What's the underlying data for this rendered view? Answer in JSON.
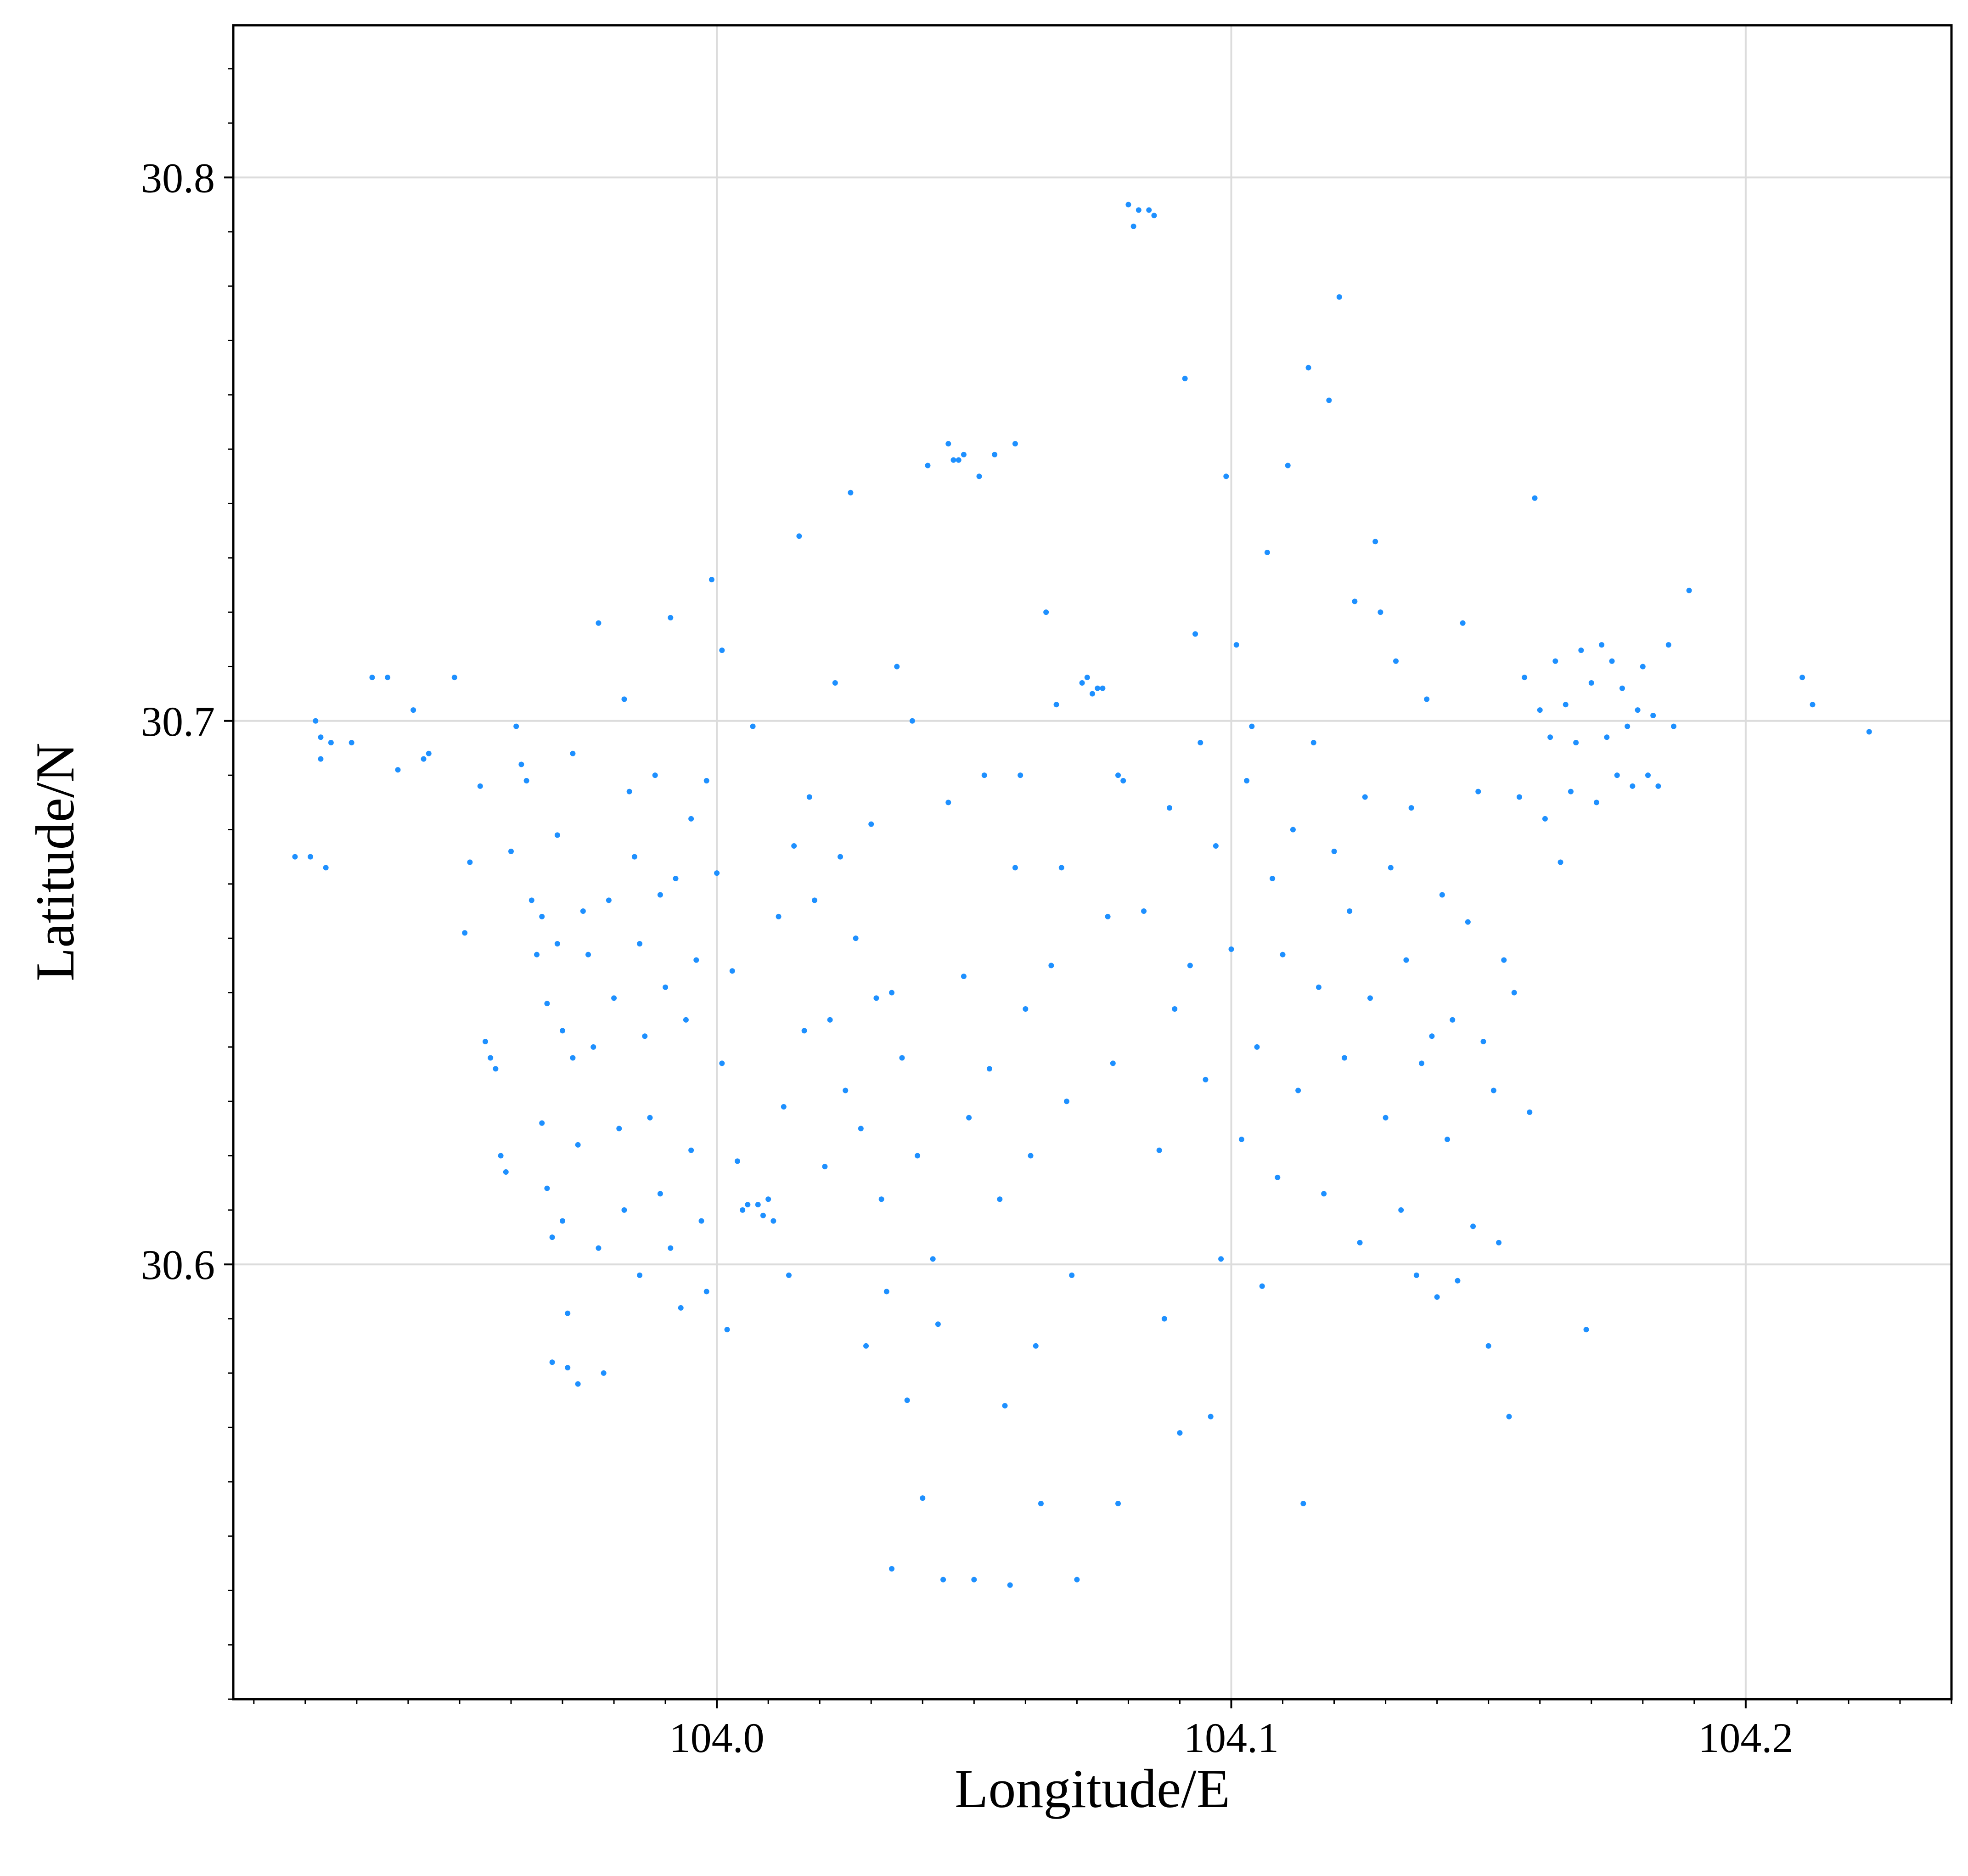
{
  "chart_data": {
    "type": "scatter",
    "title": "",
    "xlabel": "Longitude/E",
    "ylabel": "Latitude/N",
    "xlim": [
      103.906,
      104.24
    ],
    "ylim": [
      30.52,
      30.828
    ],
    "x_ticks": [
      104.0,
      104.1,
      104.2
    ],
    "x_tick_labels": [
      "104.0",
      "104.1",
      "104.2"
    ],
    "y_ticks": [
      30.6,
      30.7,
      30.8
    ],
    "y_tick_labels": [
      "30.6",
      "30.7",
      "30.8"
    ],
    "x_minor_step": 0.01,
    "y_minor_step": 0.01,
    "grid": true,
    "legend": "none",
    "marker_color": "#1e90ff",
    "series": [
      {
        "points": [
          [
            103.918,
            30.675
          ],
          [
            103.921,
            30.675
          ],
          [
            103.922,
            30.7
          ],
          [
            103.923,
            30.693
          ],
          [
            103.923,
            30.697
          ],
          [
            103.924,
            30.673
          ],
          [
            103.925,
            30.696
          ],
          [
            103.929,
            30.696
          ],
          [
            103.933,
            30.708
          ],
          [
            103.936,
            30.708
          ],
          [
            103.938,
            30.691
          ],
          [
            103.941,
            30.702
          ],
          [
            103.943,
            30.693
          ],
          [
            103.944,
            30.694
          ],
          [
            103.949,
            30.708
          ],
          [
            103.951,
            30.661
          ],
          [
            103.952,
            30.674
          ],
          [
            103.954,
            30.688
          ],
          [
            103.955,
            30.641
          ],
          [
            103.956,
            30.638
          ],
          [
            103.957,
            30.636
          ],
          [
            103.958,
            30.62
          ],
          [
            103.959,
            30.617
          ],
          [
            103.96,
            30.676
          ],
          [
            103.961,
            30.699
          ],
          [
            103.962,
            30.692
          ],
          [
            103.963,
            30.689
          ],
          [
            103.964,
            30.667
          ],
          [
            103.965,
            30.657
          ],
          [
            103.966,
            30.664
          ],
          [
            103.966,
            30.626
          ],
          [
            103.967,
            30.648
          ],
          [
            103.967,
            30.614
          ],
          [
            103.968,
            30.605
          ],
          [
            103.968,
            30.582
          ],
          [
            103.969,
            30.679
          ],
          [
            103.969,
            30.659
          ],
          [
            103.97,
            30.643
          ],
          [
            103.97,
            30.608
          ],
          [
            103.971,
            30.591
          ],
          [
            103.971,
            30.581
          ],
          [
            103.972,
            30.694
          ],
          [
            103.972,
            30.638
          ],
          [
            103.973,
            30.622
          ],
          [
            103.973,
            30.578
          ],
          [
            103.974,
            30.665
          ],
          [
            103.975,
            30.657
          ],
          [
            103.976,
            30.64
          ],
          [
            103.977,
            30.718
          ],
          [
            103.977,
            30.603
          ],
          [
            103.978,
            30.58
          ],
          [
            103.979,
            30.667
          ],
          [
            103.98,
            30.649
          ],
          [
            103.981,
            30.625
          ],
          [
            103.982,
            30.704
          ],
          [
            103.982,
            30.61
          ],
          [
            103.983,
            30.687
          ],
          [
            103.984,
            30.675
          ],
          [
            103.985,
            30.659
          ],
          [
            103.985,
            30.598
          ],
          [
            103.986,
            30.642
          ],
          [
            103.987,
            30.627
          ],
          [
            103.988,
            30.69
          ],
          [
            103.989,
            30.668
          ],
          [
            103.989,
            30.613
          ],
          [
            103.99,
            30.651
          ],
          [
            103.991,
            30.719
          ],
          [
            103.991,
            30.603
          ],
          [
            103.992,
            30.671
          ],
          [
            103.993,
            30.592
          ],
          [
            103.994,
            30.645
          ],
          [
            103.995,
            30.682
          ],
          [
            103.995,
            30.621
          ],
          [
            103.996,
            30.656
          ],
          [
            103.997,
            30.608
          ],
          [
            103.998,
            30.689
          ],
          [
            103.998,
            30.595
          ],
          [
            103.999,
            30.726
          ],
          [
            104.0,
            30.672
          ],
          [
            104.001,
            30.637
          ],
          [
            104.001,
            30.713
          ],
          [
            104.002,
            30.588
          ],
          [
            104.003,
            30.654
          ],
          [
            104.004,
            30.619
          ],
          [
            104.005,
            30.61
          ],
          [
            104.006,
            30.611
          ],
          [
            104.007,
            30.699
          ],
          [
            104.008,
            30.611
          ],
          [
            104.009,
            30.609
          ],
          [
            104.01,
            30.612
          ],
          [
            104.011,
            30.608
          ],
          [
            104.012,
            30.664
          ],
          [
            104.013,
            30.629
          ],
          [
            104.014,
            30.598
          ],
          [
            104.015,
            30.677
          ],
          [
            104.016,
            30.734
          ],
          [
            104.017,
            30.643
          ],
          [
            104.018,
            30.686
          ],
          [
            104.019,
            30.667
          ],
          [
            104.021,
            30.618
          ],
          [
            104.022,
            30.645
          ],
          [
            104.023,
            30.707
          ],
          [
            104.024,
            30.675
          ],
          [
            104.025,
            30.632
          ],
          [
            104.026,
            30.742
          ],
          [
            104.027,
            30.66
          ],
          [
            104.028,
            30.625
          ],
          [
            104.029,
            30.585
          ],
          [
            104.03,
            30.681
          ],
          [
            104.031,
            30.649
          ],
          [
            104.032,
            30.612
          ],
          [
            104.033,
            30.595
          ],
          [
            104.034,
            30.65
          ],
          [
            104.034,
            30.544
          ],
          [
            104.035,
            30.71
          ],
          [
            104.036,
            30.638
          ],
          [
            104.037,
            30.575
          ],
          [
            104.038,
            30.7
          ],
          [
            104.039,
            30.62
          ],
          [
            104.04,
            30.557
          ],
          [
            104.041,
            30.747
          ],
          [
            104.042,
            30.601
          ],
          [
            104.043,
            30.589
          ],
          [
            104.044,
            30.542
          ],
          [
            104.045,
            30.751
          ],
          [
            104.045,
            30.685
          ],
          [
            104.046,
            30.748
          ],
          [
            104.047,
            30.748
          ],
          [
            104.048,
            30.749
          ],
          [
            104.048,
            30.653
          ],
          [
            104.049,
            30.627
          ],
          [
            104.05,
            30.542
          ],
          [
            104.051,
            30.745
          ],
          [
            104.052,
            30.69
          ],
          [
            104.053,
            30.636
          ],
          [
            104.054,
            30.749
          ],
          [
            104.055,
            30.612
          ],
          [
            104.056,
            30.574
          ],
          [
            104.057,
            30.541
          ],
          [
            104.058,
            30.751
          ],
          [
            104.058,
            30.673
          ],
          [
            104.059,
            30.69
          ],
          [
            104.06,
            30.647
          ],
          [
            104.061,
            30.62
          ],
          [
            104.062,
            30.585
          ],
          [
            104.063,
            30.556
          ],
          [
            104.064,
            30.72
          ],
          [
            104.065,
            30.655
          ],
          [
            104.066,
            30.703
          ],
          [
            104.067,
            30.673
          ],
          [
            104.068,
            30.63
          ],
          [
            104.069,
            30.598
          ],
          [
            104.07,
            30.542
          ],
          [
            104.071,
            30.707
          ],
          [
            104.072,
            30.708
          ],
          [
            104.073,
            30.705
          ],
          [
            104.074,
            30.706
          ],
          [
            104.075,
            30.706
          ],
          [
            104.076,
            30.664
          ],
          [
            104.077,
            30.637
          ],
          [
            104.078,
            30.69
          ],
          [
            104.078,
            30.556
          ],
          [
            104.079,
            30.689
          ],
          [
            104.08,
            30.795
          ],
          [
            104.081,
            30.791
          ],
          [
            104.082,
            30.794
          ],
          [
            104.083,
            30.665
          ],
          [
            104.084,
            30.794
          ],
          [
            104.085,
            30.793
          ],
          [
            104.086,
            30.621
          ],
          [
            104.087,
            30.59
          ],
          [
            104.088,
            30.684
          ],
          [
            104.089,
            30.647
          ],
          [
            104.09,
            30.569
          ],
          [
            104.091,
            30.763
          ],
          [
            104.092,
            30.655
          ],
          [
            104.093,
            30.716
          ],
          [
            104.094,
            30.696
          ],
          [
            104.095,
            30.634
          ],
          [
            104.096,
            30.572
          ],
          [
            104.097,
            30.677
          ],
          [
            104.098,
            30.601
          ],
          [
            104.099,
            30.745
          ],
          [
            104.1,
            30.658
          ],
          [
            104.101,
            30.714
          ],
          [
            104.102,
            30.623
          ],
          [
            104.103,
            30.689
          ],
          [
            104.104,
            30.699
          ],
          [
            104.105,
            30.64
          ],
          [
            104.106,
            30.596
          ],
          [
            104.107,
            30.731
          ],
          [
            104.108,
            30.671
          ],
          [
            104.109,
            30.616
          ],
          [
            104.11,
            30.657
          ],
          [
            104.111,
            30.747
          ],
          [
            104.112,
            30.68
          ],
          [
            104.113,
            30.632
          ],
          [
            104.114,
            30.556
          ],
          [
            104.115,
            30.765
          ],
          [
            104.116,
            30.696
          ],
          [
            104.117,
            30.651
          ],
          [
            104.118,
            30.613
          ],
          [
            104.119,
            30.759
          ],
          [
            104.12,
            30.676
          ],
          [
            104.121,
            30.778
          ],
          [
            104.122,
            30.638
          ],
          [
            104.123,
            30.665
          ],
          [
            104.124,
            30.722
          ],
          [
            104.125,
            30.604
          ],
          [
            104.126,
            30.686
          ],
          [
            104.127,
            30.649
          ],
          [
            104.128,
            30.733
          ],
          [
            104.129,
            30.72
          ],
          [
            104.13,
            30.627
          ],
          [
            104.131,
            30.673
          ],
          [
            104.132,
            30.711
          ],
          [
            104.133,
            30.61
          ],
          [
            104.134,
            30.656
          ],
          [
            104.135,
            30.684
          ],
          [
            104.136,
            30.598
          ],
          [
            104.137,
            30.637
          ],
          [
            104.138,
            30.704
          ],
          [
            104.139,
            30.642
          ],
          [
            104.14,
            30.594
          ],
          [
            104.141,
            30.668
          ],
          [
            104.142,
            30.623
          ],
          [
            104.143,
            30.645
          ],
          [
            104.144,
            30.597
          ],
          [
            104.145,
            30.718
          ],
          [
            104.146,
            30.663
          ],
          [
            104.147,
            30.607
          ],
          [
            104.148,
            30.687
          ],
          [
            104.149,
            30.641
          ],
          [
            104.15,
            30.585
          ],
          [
            104.151,
            30.632
          ],
          [
            104.152,
            30.604
          ],
          [
            104.153,
            30.656
          ],
          [
            104.154,
            30.572
          ],
          [
            104.155,
            30.65
          ],
          [
            104.156,
            30.686
          ],
          [
            104.157,
            30.708
          ],
          [
            104.158,
            30.628
          ],
          [
            104.159,
            30.741
          ],
          [
            104.16,
            30.702
          ],
          [
            104.161,
            30.682
          ],
          [
            104.162,
            30.697
          ],
          [
            104.163,
            30.711
          ],
          [
            104.164,
            30.674
          ],
          [
            104.165,
            30.703
          ],
          [
            104.166,
            30.687
          ],
          [
            104.167,
            30.696
          ],
          [
            104.168,
            30.713
          ],
          [
            104.169,
            30.588
          ],
          [
            104.17,
            30.707
          ],
          [
            104.171,
            30.685
          ],
          [
            104.172,
            30.714
          ],
          [
            104.173,
            30.697
          ],
          [
            104.174,
            30.711
          ],
          [
            104.175,
            30.69
          ],
          [
            104.176,
            30.706
          ],
          [
            104.177,
            30.699
          ],
          [
            104.178,
            30.688
          ],
          [
            104.179,
            30.702
          ],
          [
            104.18,
            30.71
          ],
          [
            104.181,
            30.69
          ],
          [
            104.182,
            30.701
          ],
          [
            104.183,
            30.688
          ],
          [
            104.185,
            30.714
          ],
          [
            104.186,
            30.699
          ],
          [
            104.189,
            30.724
          ],
          [
            104.211,
            30.708
          ],
          [
            104.213,
            30.703
          ],
          [
            104.224,
            30.698
          ]
        ]
      }
    ]
  }
}
